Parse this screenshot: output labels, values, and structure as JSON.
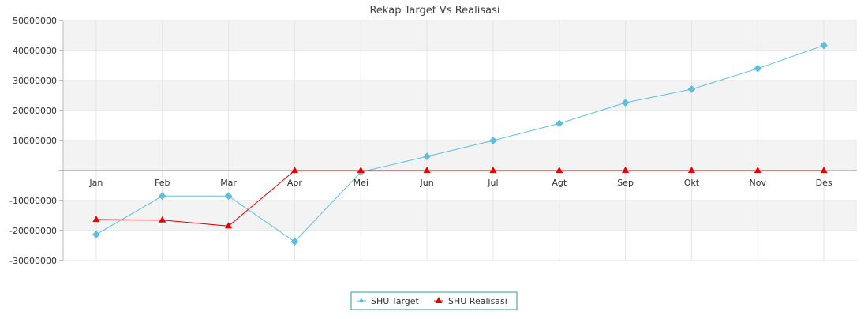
{
  "chart_data": {
    "type": "line",
    "title": "Rekap Target Vs Realisasi",
    "xlabel": "",
    "ylabel": "",
    "categories": [
      "Jan",
      "Feb",
      "Mar",
      "Apr",
      "Mei",
      "Jun",
      "Jul",
      "Agt",
      "Sep",
      "Okt",
      "Nov",
      "Des"
    ],
    "ylim": [
      -30000000,
      50000000
    ],
    "yticks": [
      50000000,
      40000000,
      30000000,
      20000000,
      10000000,
      -10000000,
      -20000000,
      -30000000
    ],
    "ytick_labels": [
      "50000000",
      "40000000",
      "30000000",
      "20000000",
      "10000000",
      "-10000000",
      "-20000000",
      "-30000000"
    ],
    "grid": true,
    "legend_position": "bottom-center",
    "series": [
      {
        "name": "SHU Target",
        "color": "#5bc0de",
        "marker": "diamond",
        "values": [
          -21300000,
          -8500000,
          -8500000,
          -23700000,
          -500000,
          4700000,
          10000000,
          15700000,
          22600000,
          27100000,
          34000000,
          41700000
        ]
      },
      {
        "name": "SHU Realisasi",
        "color": "#e60000",
        "marker": "triangle",
        "values": [
          -16300000,
          -16500000,
          -18500000,
          0,
          0,
          0,
          0,
          0,
          0,
          0,
          0,
          0
        ]
      }
    ]
  }
}
